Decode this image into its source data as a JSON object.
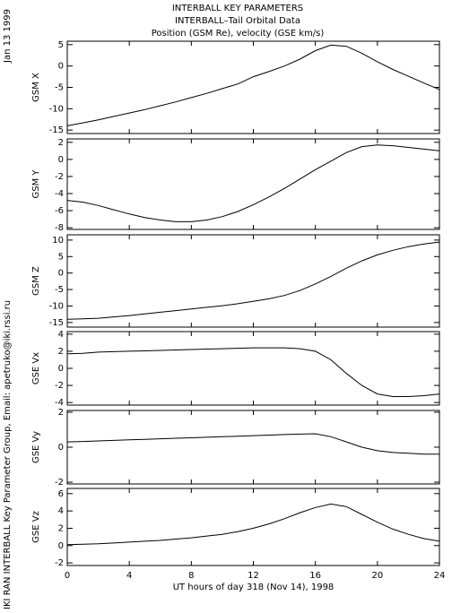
{
  "header": {
    "lines": [
      "INTERBALL KEY PARAMETERS",
      "INTERBALL–Tail Orbital Data",
      "Position (GSM Re), velocity (GSE km/s)"
    ]
  },
  "date": "Jan 13 1999",
  "side_text": "IKI RAN INTERBALL Key Parameter Group, Email: apetruko@iki.rssi.ru",
  "x_axis": {
    "xlim": [
      0,
      24
    ],
    "xticks": [
      0,
      4,
      8,
      12,
      16,
      20,
      24
    ],
    "xlabel": "UT hours of day 318 (Nov 14), 1998"
  },
  "chart_data": [
    {
      "type": "line",
      "ylabel": "GSM X",
      "color": "#000000",
      "ylim": [
        -15.8,
        5.8
      ],
      "yticks": [
        -15,
        -10,
        -5,
        0,
        5
      ],
      "x": [
        0,
        1,
        2,
        3,
        4,
        5,
        6,
        7,
        8,
        9,
        10,
        11,
        12,
        13,
        14,
        15,
        16,
        17,
        18,
        19,
        20,
        21,
        22,
        23,
        24
      ],
      "values": [
        -14,
        -13.3,
        -12.6,
        -11.8,
        -11,
        -10.2,
        -9.3,
        -8.4,
        -7.4,
        -6.4,
        -5.3,
        -4.2,
        -2.5,
        -1.3,
        0,
        1.6,
        3.6,
        4.9,
        4.6,
        3.0,
        1.0,
        -0.8,
        -2.4,
        -4.0,
        -5.5
      ]
    },
    {
      "type": "line",
      "ylabel": "GSM Y",
      "color": "#000000",
      "ylim": [
        -8.2,
        2.4
      ],
      "yticks": [
        -8,
        -6,
        -4,
        -2,
        0,
        2
      ],
      "x": [
        0,
        1,
        2,
        3,
        4,
        5,
        6,
        7,
        8,
        9,
        10,
        11,
        12,
        13,
        14,
        15,
        16,
        17,
        18,
        19,
        20,
        21,
        22,
        23,
        24
      ],
      "values": [
        -4.8,
        -5,
        -5.4,
        -5.9,
        -6.4,
        -6.8,
        -7.1,
        -7.3,
        -7.3,
        -7.1,
        -6.7,
        -6.1,
        -5.3,
        -4.4,
        -3.4,
        -2.3,
        -1.2,
        -0.2,
        0.8,
        1.5,
        1.7,
        1.6,
        1.4,
        1.2,
        1.0
      ]
    },
    {
      "type": "line",
      "ylabel": "GSM Z",
      "color": "#000000",
      "ylim": [
        -16.4,
        11.6
      ],
      "yticks": [
        -15,
        -10,
        -5,
        0,
        5,
        10
      ],
      "x": [
        0,
        1,
        2,
        3,
        4,
        5,
        6,
        7,
        8,
        9,
        10,
        11,
        12,
        13,
        14,
        15,
        16,
        17,
        18,
        19,
        20,
        21,
        22,
        23,
        24
      ],
      "values": [
        -14,
        -13.9,
        -13.7,
        -13.3,
        -12.9,
        -12.4,
        -11.9,
        -11.4,
        -10.9,
        -10.4,
        -9.9,
        -9.3,
        -8.6,
        -7.8,
        -6.8,
        -5.3,
        -3.3,
        -1.0,
        1.5,
        3.7,
        5.5,
        6.9,
        8.0,
        8.8,
        9.4
      ]
    },
    {
      "type": "line",
      "ylabel": "GSE Vx",
      "color": "#000000",
      "ylim": [
        -4.3,
        4.3
      ],
      "yticks": [
        -4,
        -2,
        0,
        2,
        4
      ],
      "x": [
        0,
        1,
        2,
        3,
        4,
        5,
        6,
        7,
        8,
        9,
        10,
        11,
        12,
        13,
        14,
        15,
        16,
        17,
        18,
        19,
        20,
        21,
        22,
        23,
        24
      ],
      "values": [
        1.7,
        1.75,
        1.9,
        1.95,
        2.0,
        2.05,
        2.1,
        2.15,
        2.2,
        2.25,
        2.3,
        2.35,
        2.4,
        2.4,
        2.4,
        2.3,
        2.0,
        1.0,
        -0.6,
        -2.0,
        -3.0,
        -3.3,
        -3.3,
        -3.2,
        -3.0
      ]
    },
    {
      "type": "line",
      "ylabel": "GSE Vy",
      "color": "#000000",
      "ylim": [
        -2.1,
        2.1
      ],
      "yticks": [
        -2,
        0,
        2
      ],
      "x": [
        0,
        1,
        2,
        3,
        4,
        5,
        6,
        7,
        8,
        9,
        10,
        11,
        12,
        13,
        14,
        15,
        16,
        17,
        18,
        19,
        20,
        21,
        22,
        23,
        24
      ],
      "values": [
        0.3,
        0.33,
        0.36,
        0.39,
        0.42,
        0.45,
        0.48,
        0.51,
        0.54,
        0.57,
        0.6,
        0.63,
        0.66,
        0.69,
        0.72,
        0.75,
        0.77,
        0.6,
        0.3,
        0,
        -0.2,
        -0.3,
        -0.35,
        -0.4,
        -0.4
      ]
    },
    {
      "type": "line",
      "ylabel": "GSE Vz",
      "color": "#000000",
      "ylim": [
        -2.3,
        6.6
      ],
      "yticks": [
        -2,
        0,
        2,
        4,
        6
      ],
      "x": [
        0,
        1,
        2,
        3,
        4,
        5,
        6,
        7,
        8,
        9,
        10,
        11,
        12,
        13,
        14,
        15,
        16,
        17,
        18,
        19,
        20,
        21,
        22,
        23,
        24
      ],
      "values": [
        0.1,
        0.15,
        0.2,
        0.3,
        0.4,
        0.5,
        0.6,
        0.75,
        0.9,
        1.1,
        1.3,
        1.6,
        2.0,
        2.5,
        3.1,
        3.8,
        4.4,
        4.8,
        4.5,
        3.6,
        2.7,
        1.9,
        1.3,
        0.8,
        0.5
      ]
    }
  ]
}
